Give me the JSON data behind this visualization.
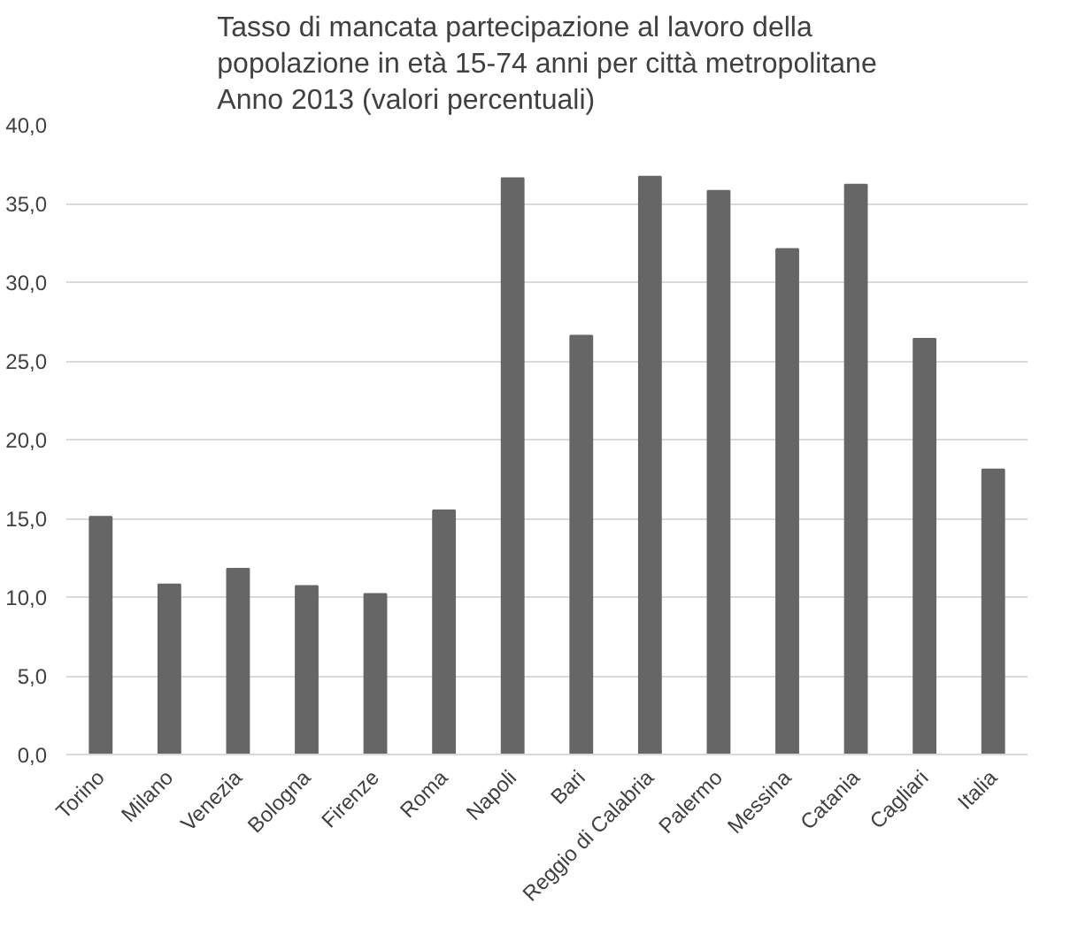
{
  "chart_data": {
    "type": "bar",
    "title": "Tasso di mancata partecipazione al lavoro della\npopolazione in età 15-74 anni per città metropolitane\nAnno 2013 (valori percentuali)",
    "categories": [
      "Torino",
      "Milano",
      "Venezia",
      "Bologna",
      "Firenze",
      "Roma",
      "Napoli",
      "Bari",
      "Reggio di Calabria",
      "Palermo",
      "Messina",
      "Catania",
      "Cagliari",
      "Italia"
    ],
    "values": [
      15.1,
      10.8,
      11.8,
      10.7,
      10.2,
      15.5,
      36.6,
      26.6,
      36.7,
      35.8,
      32.1,
      36.2,
      26.4,
      18.1
    ],
    "color": "#666666",
    "ylim": [
      0,
      40
    ],
    "yticks": [
      {
        "value": 0,
        "label": "0,0"
      },
      {
        "value": 5,
        "label": "5,0"
      },
      {
        "value": 10,
        "label": "10,0"
      },
      {
        "value": 15,
        "label": "15,0"
      },
      {
        "value": 20,
        "label": "20,0"
      },
      {
        "value": 25,
        "label": "25,0"
      },
      {
        "value": 30,
        "label": "30,0"
      },
      {
        "value": 35,
        "label": "35,0"
      },
      {
        "value": 40,
        "label": "40,0"
      }
    ],
    "grid": "y"
  }
}
